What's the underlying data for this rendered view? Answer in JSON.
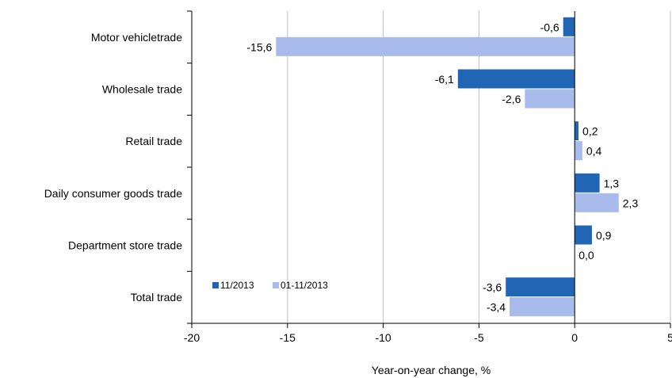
{
  "chart_data": {
    "type": "bar",
    "orientation": "horizontal",
    "title": "",
    "xlabel": "Year-on-year change, %",
    "ylabel": "",
    "xlim": [
      -20,
      5
    ],
    "xticks": [
      -20,
      -15,
      -10,
      -5,
      0,
      5
    ],
    "tick_labels": [
      "-20",
      "-15",
      "-10",
      "-5",
      "0",
      "5"
    ],
    "categories": [
      "Motor vehicletrade",
      "Wholesale trade",
      "Retail trade",
      "Daily consumer goods trade",
      "Department store trade",
      "Total trade"
    ],
    "series": [
      {
        "name": "11/2013",
        "color": "#2066B5",
        "values": [
          -0.6,
          -6.1,
          0.2,
          1.3,
          0.9,
          -3.6
        ],
        "labels": [
          "-0,6",
          "-6,1",
          "0,2",
          "1,3",
          "0,9",
          "-3,6"
        ]
      },
      {
        "name": "01-11/2013",
        "color": "#A8BBEA",
        "values": [
          -15.6,
          -2.6,
          0.4,
          2.3,
          0.0,
          -3.4
        ],
        "labels": [
          "-15,6",
          "-2,6",
          "0,4",
          "2,3",
          "0,0",
          "-3,4"
        ]
      }
    ],
    "grid": "vertical",
    "legend_placement": "bottom-left inside plot"
  }
}
